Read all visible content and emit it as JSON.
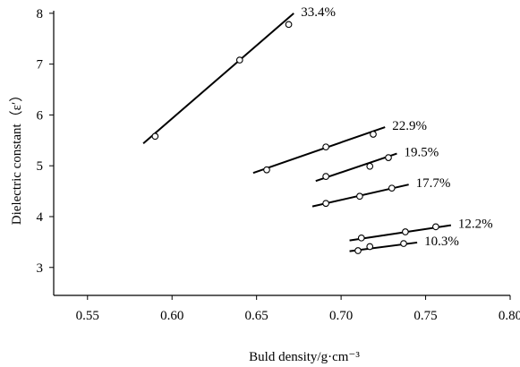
{
  "chart_data": {
    "type": "scatter",
    "title": "",
    "xlabel": "Buld density/g·cm⁻³",
    "ylabel": "Dielectric constant（ε′）",
    "xlim": [
      0.53,
      0.8
    ],
    "ylim": [
      2.45,
      8.05
    ],
    "x_ticks": [
      "0.55",
      "0.60",
      "0.65",
      "0.70",
      "0.75",
      "0.80"
    ],
    "y_ticks": [
      "3",
      "4",
      "5",
      "6",
      "7",
      "8"
    ],
    "grid": false,
    "legend": "none",
    "colors": {
      "line": "#000000",
      "marker_fill": "#ffffff",
      "axis": "#000000"
    },
    "series": [
      {
        "name": "33.4%",
        "points": [
          [
            0.59,
            5.58
          ],
          [
            0.64,
            7.08
          ],
          [
            0.669,
            7.78
          ]
        ],
        "fit": [
          [
            0.583,
            5.44
          ],
          [
            0.672,
            8.0
          ]
        ]
      },
      {
        "name": "22.9%",
        "points": [
          [
            0.656,
            4.92
          ],
          [
            0.691,
            5.37
          ],
          [
            0.719,
            5.62
          ]
        ],
        "fit": [
          [
            0.648,
            4.86
          ],
          [
            0.726,
            5.76
          ]
        ]
      },
      {
        "name": "19.5%",
        "points": [
          [
            0.691,
            4.79
          ],
          [
            0.717,
            4.99
          ],
          [
            0.728,
            5.16
          ]
        ],
        "fit": [
          [
            0.685,
            4.7
          ],
          [
            0.733,
            5.24
          ]
        ]
      },
      {
        "name": "17.7%",
        "points": [
          [
            0.691,
            4.26
          ],
          [
            0.711,
            4.4
          ],
          [
            0.73,
            4.56
          ]
        ],
        "fit": [
          [
            0.683,
            4.2
          ],
          [
            0.74,
            4.63
          ]
        ]
      },
      {
        "name": "12.2%",
        "points": [
          [
            0.712,
            3.58
          ],
          [
            0.738,
            3.7
          ],
          [
            0.756,
            3.8
          ]
        ],
        "fit": [
          [
            0.705,
            3.53
          ],
          [
            0.765,
            3.83
          ]
        ]
      },
      {
        "name": "10.3%",
        "points": [
          [
            0.71,
            3.33
          ],
          [
            0.717,
            3.41
          ],
          [
            0.737,
            3.47
          ]
        ],
        "fit": [
          [
            0.705,
            3.32
          ],
          [
            0.745,
            3.49
          ]
        ]
      }
    ]
  }
}
